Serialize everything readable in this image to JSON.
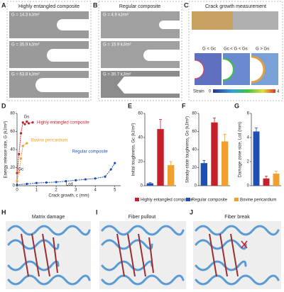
{
  "panel_labels": [
    "A",
    "B",
    "C",
    "D",
    "E",
    "F",
    "G",
    "H",
    "I",
    "J"
  ],
  "panel_a": {
    "title": "Highly entangled composite",
    "labels": [
      "G = 14.3 kJ/m²",
      "G = 35.9 kJ/m²",
      "G = 63.8 kJ/m²"
    ]
  },
  "panel_b": {
    "title": "Regular composite",
    "labels": [
      "G = 4.9 kJ/m²",
      "G = 15.9 kJ/m²",
      "G = 30.7 kJ/m²"
    ]
  },
  "panel_c": {
    "title": "Crack growth measurement",
    "labels": [
      "G < Gc",
      "Gc < G < Gs",
      "G > Gs"
    ],
    "strain_label": "Strain",
    "strain_min": "0",
    "strain_max": "4"
  },
  "legend": [
    {
      "name": "Highly entangled composite",
      "color": "#c8202a"
    },
    {
      "name": "Regular composite",
      "color": "#1f4fb4"
    },
    {
      "name": "Bovine pericardium",
      "color": "#f0a030"
    }
  ],
  "schematics": {
    "h": "Matrix damage",
    "i": "Fiber pullout",
    "j": "Fiber break"
  },
  "chart_data": [
    {
      "type": "line",
      "ylabel": "Energy release rate, G (kJ/m²)",
      "xlabel": "Crack growth, c (mm)",
      "xlim": [
        0,
        5.3
      ],
      "xticks": [
        0,
        1,
        2,
        3,
        4,
        5
      ],
      "ylim": [
        0,
        80
      ],
      "yticks": [
        0,
        20,
        40,
        60,
        80
      ],
      "annotations": [
        "Gc",
        "Gs",
        "Lcd"
      ],
      "series": [
        {
          "name": "Highly entangled composite",
          "color": "#c8202a",
          "x": [
            0,
            0.1,
            0.2,
            0.3,
            0.4,
            0.5,
            0.6,
            0.8
          ],
          "values": [
            14,
            35,
            58,
            70,
            68,
            71,
            69,
            70
          ]
        },
        {
          "name": "Bovine pericardium",
          "color": "#f0a030",
          "x": [
            0,
            0.1,
            0.2,
            0.3,
            0.5
          ],
          "values": [
            5,
            15,
            30,
            44,
            47
          ]
        },
        {
          "name": "Regular composite",
          "color": "#1f4fb4",
          "x": [
            0,
            0.5,
            1,
            1.5,
            2,
            2.5,
            3,
            3.5,
            4,
            4.5,
            4.8,
            5
          ],
          "values": [
            1,
            2,
            3,
            3.5,
            4,
            5,
            6,
            7,
            8,
            10,
            18,
            25
          ]
        }
      ]
    },
    {
      "type": "bar",
      "ylabel": "Initial toughness, Gc (kJ/m²)",
      "ylim": [
        0,
        60
      ],
      "yticks": [
        0,
        20,
        40,
        60
      ],
      "categories": [
        null,
        null,
        null
      ],
      "colors": [
        "#1f4fb4",
        "#c8202a",
        "#f0a030"
      ],
      "values": [
        2,
        47,
        17
      ],
      "errors": [
        0.5,
        8,
        3
      ]
    },
    {
      "type": "bar",
      "ylabel": "Steady-state toughness, Gs (kJ/m²)",
      "ylim": [
        0,
        80
      ],
      "yticks": [
        0,
        20,
        40,
        60,
        80
      ],
      "categories": [
        null,
        null,
        null
      ],
      "colors": [
        "#1f4fb4",
        "#c8202a",
        "#f0a030"
      ],
      "values": [
        25,
        70,
        49
      ],
      "errors": [
        3,
        5,
        8
      ]
    },
    {
      "type": "bar",
      "ylabel": "Damage zone size, Lcd (mm)",
      "ylim": [
        0,
        6
      ],
      "yticks": [
        0,
        2,
        4,
        6
      ],
      "categories": [
        null,
        null,
        null
      ],
      "colors": [
        "#1f4fb4",
        "#c8202a",
        "#f0a030"
      ],
      "values": [
        4.5,
        0.6,
        1.0
      ],
      "errors": [
        0.3,
        0.2,
        0.2
      ]
    }
  ]
}
